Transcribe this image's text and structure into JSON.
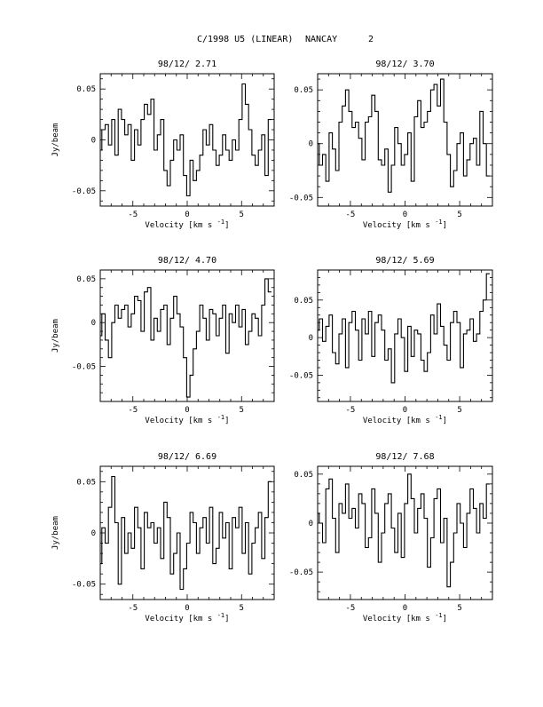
{
  "figure": {
    "title_left": "C/1998 U5 (LINEAR)",
    "title_mid": "NANCAY",
    "title_right": "2"
  },
  "chart_data": [
    {
      "type": "line",
      "title": "98/12/ 2.71",
      "xlabel": "Velocity [km s",
      "xlabel_sup": "-1",
      "xlabel_close": "]",
      "ylabel": "Jy/beam",
      "xlim": [
        -8,
        8
      ],
      "ylim": [
        -0.065,
        0.065
      ],
      "xticks": [
        "-5",
        "0",
        "5"
      ],
      "yticks": [
        "0.05",
        "0",
        "-0.05"
      ],
      "x": [
        -8.0,
        -7.7,
        -7.4,
        -7.1,
        -6.8,
        -6.5,
        -6.2,
        -5.9,
        -5.6,
        -5.3,
        -5.0,
        -4.7,
        -4.4,
        -4.1,
        -3.8,
        -3.5,
        -3.2,
        -2.9,
        -2.6,
        -2.3,
        -2.0,
        -1.7,
        -1.4,
        -1.1,
        -0.8,
        -0.5,
        -0.2,
        0.1,
        0.4,
        0.7,
        1.0,
        1.3,
        1.6,
        1.9,
        2.2,
        2.5,
        2.8,
        3.1,
        3.4,
        3.7,
        4.0,
        4.3,
        4.6,
        4.9,
        5.2,
        5.5,
        5.8,
        6.1,
        6.4,
        6.7,
        7.0,
        7.3,
        7.6
      ],
      "values": [
        -0.01,
        0.01,
        0.015,
        -0.005,
        0.02,
        -0.015,
        0.03,
        0.02,
        0.005,
        0.015,
        -0.02,
        0.01,
        -0.005,
        0.02,
        0.035,
        0.025,
        0.04,
        -0.01,
        0.005,
        0.02,
        -0.03,
        -0.045,
        -0.02,
        0.0,
        -0.01,
        0.005,
        -0.035,
        -0.055,
        -0.02,
        -0.04,
        -0.03,
        -0.015,
        0.01,
        -0.005,
        0.015,
        -0.01,
        -0.025,
        -0.015,
        0.005,
        -0.01,
        -0.02,
        0.0,
        -0.01,
        0.02,
        0.055,
        0.035,
        0.01,
        -0.015,
        -0.025,
        -0.01,
        0.005,
        -0.035,
        0.02
      ]
    },
    {
      "type": "line",
      "title": "98/12/ 3.70",
      "xlabel": "Velocity [km s",
      "xlabel_sup": "-1",
      "xlabel_close": "]",
      "ylabel": "",
      "xlim": [
        -8,
        8
      ],
      "ylim": [
        -0.058,
        0.065
      ],
      "xticks": [
        "-5",
        "0",
        "5"
      ],
      "yticks": [
        "0.05",
        "0",
        "-0.05"
      ],
      "x": [
        -8.0,
        -7.7,
        -7.4,
        -7.1,
        -6.8,
        -6.5,
        -6.2,
        -5.9,
        -5.6,
        -5.3,
        -5.0,
        -4.7,
        -4.4,
        -4.1,
        -3.8,
        -3.5,
        -3.2,
        -2.9,
        -2.6,
        -2.3,
        -2.0,
        -1.7,
        -1.4,
        -1.1,
        -0.8,
        -0.5,
        -0.2,
        0.1,
        0.4,
        0.7,
        1.0,
        1.3,
        1.6,
        1.9,
        2.2,
        2.5,
        2.8,
        3.1,
        3.4,
        3.7,
        4.0,
        4.3,
        4.6,
        4.9,
        5.2,
        5.5,
        5.8,
        6.1,
        6.4,
        6.7,
        7.0,
        7.3,
        7.6
      ],
      "values": [
        0.0,
        -0.02,
        -0.01,
        -0.035,
        0.01,
        -0.005,
        -0.025,
        0.02,
        0.035,
        0.05,
        0.03,
        0.015,
        0.02,
        0.005,
        -0.015,
        0.02,
        0.025,
        0.045,
        0.03,
        -0.015,
        -0.02,
        -0.005,
        -0.045,
        -0.02,
        0.015,
        0.0,
        -0.02,
        -0.01,
        0.01,
        -0.035,
        0.025,
        0.04,
        0.015,
        0.02,
        0.03,
        0.05,
        0.055,
        0.035,
        0.06,
        0.02,
        -0.01,
        -0.04,
        -0.025,
        0.0,
        0.01,
        -0.03,
        -0.015,
        0.0,
        0.005,
        -0.02,
        0.03,
        0.0,
        -0.03
      ]
    },
    {
      "type": "line",
      "title": "98/12/ 4.70",
      "xlabel": "Velocity [km s",
      "xlabel_sup": "-1",
      "xlabel_close": "]",
      "ylabel": "Jy/beam",
      "xlim": [
        -8,
        8
      ],
      "ylim": [
        -0.09,
        0.06
      ],
      "xticks": [
        "-5",
        "0",
        "5"
      ],
      "yticks": [
        "0.05",
        "0",
        "-0.05"
      ],
      "x": [
        -8.0,
        -7.7,
        -7.4,
        -7.1,
        -6.8,
        -6.5,
        -6.2,
        -5.9,
        -5.6,
        -5.3,
        -5.0,
        -4.7,
        -4.4,
        -4.1,
        -3.8,
        -3.5,
        -3.2,
        -2.9,
        -2.6,
        -2.3,
        -2.0,
        -1.7,
        -1.4,
        -1.1,
        -0.8,
        -0.5,
        -0.2,
        0.1,
        0.4,
        0.7,
        1.0,
        1.3,
        1.6,
        1.9,
        2.2,
        2.5,
        2.8,
        3.1,
        3.4,
        3.7,
        4.0,
        4.3,
        4.6,
        4.9,
        5.2,
        5.5,
        5.8,
        6.1,
        6.4,
        6.7,
        7.0,
        7.3,
        7.6
      ],
      "values": [
        -0.015,
        0.01,
        -0.02,
        -0.04,
        0.0,
        0.02,
        0.005,
        0.015,
        0.02,
        -0.005,
        0.01,
        0.03,
        0.025,
        -0.01,
        0.035,
        0.04,
        -0.02,
        0.005,
        -0.01,
        0.015,
        0.02,
        -0.025,
        0.005,
        0.03,
        0.01,
        -0.005,
        -0.04,
        -0.085,
        -0.06,
        -0.03,
        -0.01,
        0.02,
        0.005,
        -0.02,
        0.015,
        0.01,
        -0.015,
        0.005,
        0.02,
        -0.035,
        0.01,
        0.0,
        0.02,
        -0.005,
        0.015,
        -0.025,
        -0.01,
        0.01,
        0.005,
        -0.015,
        0.02,
        0.05,
        0.035
      ]
    },
    {
      "type": "line",
      "title": "98/12/ 5.69",
      "xlabel": "Velocity [km s",
      "xlabel_sup": "-1",
      "xlabel_close": "]",
      "ylabel": "",
      "xlim": [
        -8,
        8
      ],
      "ylim": [
        -0.085,
        0.09
      ],
      "xticks": [
        "-5",
        "0",
        "5"
      ],
      "yticks": [
        "0.05",
        "0",
        "-0.05"
      ],
      "x": [
        -8.0,
        -7.7,
        -7.4,
        -7.1,
        -6.8,
        -6.5,
        -6.2,
        -5.9,
        -5.6,
        -5.3,
        -5.0,
        -4.7,
        -4.4,
        -4.1,
        -3.8,
        -3.5,
        -3.2,
        -2.9,
        -2.6,
        -2.3,
        -2.0,
        -1.7,
        -1.4,
        -1.1,
        -0.8,
        -0.5,
        -0.2,
        0.1,
        0.4,
        0.7,
        1.0,
        1.3,
        1.6,
        1.9,
        2.2,
        2.5,
        2.8,
        3.1,
        3.4,
        3.7,
        4.0,
        4.3,
        4.6,
        4.9,
        5.2,
        5.5,
        5.8,
        6.1,
        6.4,
        6.7,
        7.0,
        7.3,
        7.6
      ],
      "values": [
        0.01,
        0.025,
        -0.005,
        0.015,
        0.03,
        -0.02,
        -0.035,
        0.005,
        0.025,
        -0.04,
        0.02,
        0.035,
        0.01,
        -0.03,
        0.025,
        0.005,
        0.035,
        -0.025,
        0.02,
        0.03,
        0.01,
        -0.03,
        -0.015,
        -0.06,
        0.005,
        0.025,
        0.0,
        -0.045,
        0.015,
        -0.025,
        0.01,
        0.005,
        -0.03,
        -0.045,
        -0.02,
        0.03,
        0.005,
        0.045,
        0.015,
        -0.01,
        -0.03,
        0.02,
        0.035,
        0.02,
        -0.04,
        0.005,
        0.01,
        0.025,
        -0.005,
        0.005,
        0.035,
        0.05,
        0.085
      ]
    },
    {
      "type": "line",
      "title": "98/12/ 6.69",
      "xlabel": "Velocity [km s",
      "xlabel_sup": "-1",
      "xlabel_close": "]",
      "ylabel": "Jy/beam",
      "xlim": [
        -8,
        8
      ],
      "ylim": [
        -0.065,
        0.065
      ],
      "xticks": [
        "-5",
        "0",
        "5"
      ],
      "yticks": [
        "0.05",
        "0",
        "-0.05"
      ],
      "x": [
        -8.0,
        -7.7,
        -7.4,
        -7.1,
        -6.8,
        -6.5,
        -6.2,
        -5.9,
        -5.6,
        -5.3,
        -5.0,
        -4.7,
        -4.4,
        -4.1,
        -3.8,
        -3.5,
        -3.2,
        -2.9,
        -2.6,
        -2.3,
        -2.0,
        -1.7,
        -1.4,
        -1.1,
        -0.8,
        -0.5,
        -0.2,
        0.1,
        0.4,
        0.7,
        1.0,
        1.3,
        1.6,
        1.9,
        2.2,
        2.5,
        2.8,
        3.1,
        3.4,
        3.7,
        4.0,
        4.3,
        4.6,
        4.9,
        5.2,
        5.5,
        5.8,
        6.1,
        6.4,
        6.7,
        7.0,
        7.3,
        7.6
      ],
      "values": [
        -0.03,
        0.005,
        -0.01,
        0.025,
        0.055,
        0.01,
        -0.05,
        0.015,
        -0.02,
        0.0,
        -0.015,
        0.025,
        0.005,
        -0.035,
        0.02,
        0.005,
        0.01,
        -0.01,
        0.005,
        -0.025,
        0.03,
        0.015,
        -0.04,
        -0.02,
        0.0,
        -0.055,
        -0.035,
        -0.01,
        0.02,
        0.01,
        -0.02,
        0.005,
        0.015,
        -0.01,
        0.025,
        -0.03,
        -0.015,
        0.02,
        -0.005,
        0.01,
        -0.035,
        0.015,
        0.005,
        0.025,
        -0.02,
        0.01,
        -0.04,
        -0.01,
        0.005,
        0.02,
        -0.025,
        0.015,
        0.05
      ]
    },
    {
      "type": "line",
      "title": "98/12/ 7.68",
      "xlabel": "Velocity [km s",
      "xlabel_sup": "-1",
      "xlabel_close": "]",
      "ylabel": "",
      "xlim": [
        -8,
        8
      ],
      "ylim": [
        -0.078,
        0.058
      ],
      "xticks": [
        "-5",
        "0",
        "5"
      ],
      "yticks": [
        "0.05",
        "0",
        "-0.05"
      ],
      "x": [
        -8.0,
        -7.7,
        -7.4,
        -7.1,
        -6.8,
        -6.5,
        -6.2,
        -5.9,
        -5.6,
        -5.3,
        -5.0,
        -4.7,
        -4.4,
        -4.1,
        -3.8,
        -3.5,
        -3.2,
        -2.9,
        -2.6,
        -2.3,
        -2.0,
        -1.7,
        -1.4,
        -1.1,
        -0.8,
        -0.5,
        -0.2,
        0.1,
        0.4,
        0.7,
        1.0,
        1.3,
        1.6,
        1.9,
        2.2,
        2.5,
        2.8,
        3.1,
        3.4,
        3.7,
        4.0,
        4.3,
        4.6,
        4.9,
        5.2,
        5.5,
        5.8,
        6.1,
        6.4,
        6.7,
        7.0,
        7.3,
        7.6
      ],
      "values": [
        0.01,
        0.0,
        -0.02,
        0.035,
        0.045,
        0.005,
        -0.03,
        0.02,
        0.01,
        0.04,
        0.005,
        0.015,
        -0.005,
        0.03,
        0.02,
        -0.025,
        -0.015,
        0.035,
        0.01,
        -0.04,
        -0.01,
        0.02,
        0.03,
        -0.005,
        -0.03,
        0.01,
        -0.035,
        0.02,
        0.05,
        0.025,
        -0.01,
        0.015,
        0.03,
        0.005,
        -0.045,
        -0.015,
        0.025,
        0.035,
        -0.02,
        0.005,
        -0.065,
        -0.04,
        -0.01,
        0.02,
        0.0,
        -0.025,
        0.01,
        0.035,
        0.015,
        -0.01,
        0.02,
        0.005,
        0.04
      ]
    }
  ]
}
